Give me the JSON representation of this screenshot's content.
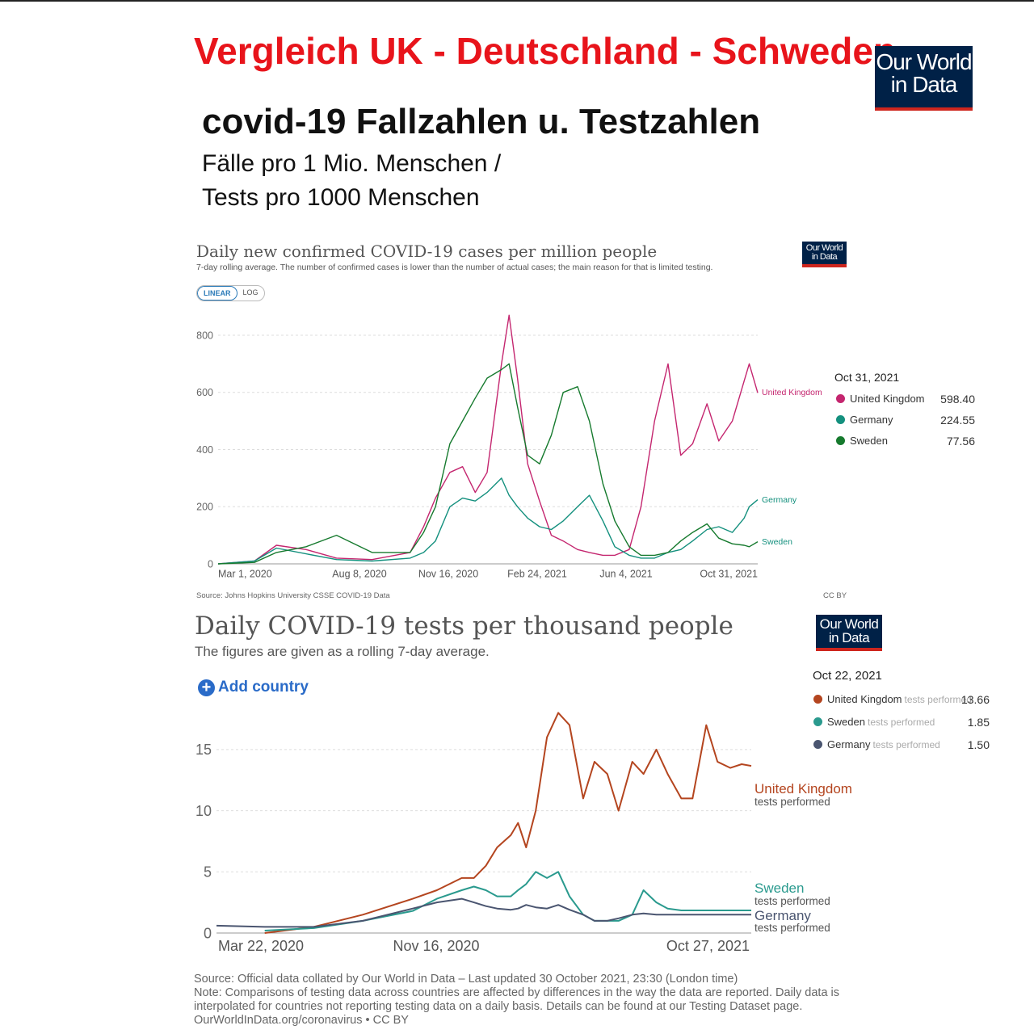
{
  "header": {
    "title": "Vergleich UK - Deutschland - Schweden",
    "subtitle": "covid-19 Fallzahlen u. Testzahlen",
    "line1": "Fälle pro 1 Mio. Menschen /",
    "line2": "Tests pro 1000 Menschen",
    "logo_line1": "Our World",
    "logo_line2": "in Data"
  },
  "chart1": {
    "title": "Daily new confirmed COVID-19 cases per million people",
    "subtitle": "7-day rolling average. The number of confirmed cases is lower than the number of actual cases; the main reason for that is limited testing.",
    "toggle_linear": "LINEAR",
    "toggle_log": "LOG",
    "source": "Source: Johns Hopkins University CSSE COVID-19 Data",
    "license": "CC BY",
    "legend_date": "Oct 31, 2021",
    "legend": [
      {
        "name": "United Kingdom",
        "value": "598.40"
      },
      {
        "name": "Germany",
        "value": "224.55"
      },
      {
        "name": "Sweden",
        "value": "77.56"
      }
    ],
    "end_labels": {
      "uk": "United Kingdom",
      "de": "Germany",
      "se": "Sweden"
    }
  },
  "chart2": {
    "title": "Daily COVID-19 tests per thousand people",
    "subtitle": "The figures are given as a rolling 7-day average.",
    "add_country": "Add country",
    "legend_date": "Oct 22, 2021",
    "legend_suffix": "tests performed",
    "legend": [
      {
        "name": "United Kingdom",
        "value": "13.66"
      },
      {
        "name": "Sweden",
        "value": "1.85"
      },
      {
        "name": "Germany",
        "value": "1.50"
      }
    ],
    "end_labels": {
      "uk": "United Kingdom",
      "se": "Sweden",
      "de": "Germany",
      "sub": "tests performed"
    },
    "footer": {
      "source": "Source: Official data collated by Our World in Data – Last updated 30 October 2021, 23:30 (London time)",
      "note": "Note: Comparisons of testing data across countries are affected by differences in the way the data are reported. Daily data is interpolated for countries not reporting testing data on a daily basis. Details can be found at our Testing Dataset page.",
      "url": "OurWorldInData.org/coronavirus • CC BY"
    }
  },
  "colors": {
    "uk1": "#c4266f",
    "de1": "#14907e",
    "se1": "#167a2e",
    "uk2": "#b4451f",
    "se2": "#2a9a8e",
    "de2": "#4a5570"
  },
  "chart_data": [
    {
      "type": "line",
      "title": "Daily new confirmed COVID-19 cases per million people",
      "ylim": [
        0,
        800
      ],
      "yticks": [
        0,
        200,
        400,
        600,
        800
      ],
      "xticks": [
        "Mar 1, 2020",
        "Aug 8, 2020",
        "Nov 16, 2020",
        "Feb 24, 2021",
        "Jun 4, 2021",
        "Oct 31, 2021"
      ],
      "x": [
        "2020-02-01",
        "2020-03-15",
        "2020-04-10",
        "2020-05-15",
        "2020-06-20",
        "2020-08-01",
        "2020-09-15",
        "2020-10-01",
        "2020-10-15",
        "2020-11-01",
        "2020-11-16",
        "2020-12-01",
        "2020-12-15",
        "2021-01-01",
        "2021-01-10",
        "2021-01-20",
        "2021-02-01",
        "2021-02-15",
        "2021-03-01",
        "2021-03-15",
        "2021-04-01",
        "2021-04-15",
        "2021-05-01",
        "2021-05-15",
        "2021-06-01",
        "2021-06-15",
        "2021-07-01",
        "2021-07-17",
        "2021-08-01",
        "2021-08-15",
        "2021-09-01",
        "2021-09-15",
        "2021-10-01",
        "2021-10-15",
        "2021-10-21",
        "2021-10-31"
      ],
      "series": [
        {
          "name": "United Kingdom",
          "values": [
            0,
            10,
            65,
            50,
            20,
            15,
            40,
            130,
            230,
            320,
            340,
            250,
            320,
            700,
            870,
            650,
            350,
            220,
            100,
            80,
            50,
            40,
            30,
            30,
            50,
            200,
            500,
            700,
            380,
            420,
            560,
            430,
            500,
            640,
            700,
            598.4
          ]
        },
        {
          "name": "Germany",
          "values": [
            0,
            10,
            55,
            35,
            15,
            10,
            20,
            40,
            80,
            200,
            230,
            220,
            250,
            300,
            240,
            200,
            160,
            130,
            120,
            150,
            200,
            240,
            150,
            60,
            30,
            20,
            20,
            40,
            50,
            80,
            120,
            130,
            110,
            160,
            200,
            224.55
          ]
        },
        {
          "name": "Sweden",
          "values": [
            0,
            5,
            40,
            60,
            100,
            40,
            40,
            110,
            200,
            420,
            500,
            580,
            650,
            680,
            700,
            550,
            380,
            350,
            450,
            600,
            620,
            500,
            280,
            150,
            60,
            30,
            30,
            40,
            80,
            110,
            140,
            90,
            70,
            65,
            60,
            77.56
          ]
        }
      ]
    },
    {
      "type": "line",
      "title": "Daily COVID-19 tests per thousand people",
      "ylim": [
        0,
        17.5
      ],
      "yticks": [
        0,
        5,
        10,
        15
      ],
      "xticks": [
        "Mar 22, 2020",
        "Nov 16, 2020",
        "Oct 27, 2021"
      ],
      "x": [
        "2020-01-01",
        "2020-03-01",
        "2020-05-01",
        "2020-07-01",
        "2020-09-01",
        "2020-10-01",
        "2020-11-01",
        "2020-11-16",
        "2020-12-01",
        "2020-12-15",
        "2021-01-01",
        "2021-01-10",
        "2021-01-20",
        "2021-02-01",
        "2021-02-15",
        "2021-03-01",
        "2021-03-15",
        "2021-04-01",
        "2021-04-15",
        "2021-05-01",
        "2021-05-15",
        "2021-06-01",
        "2021-06-15",
        "2021-07-01",
        "2021-07-15",
        "2021-08-01",
        "2021-08-15",
        "2021-09-01",
        "2021-09-15",
        "2021-10-01",
        "2021-10-15",
        "2021-10-27"
      ],
      "series": [
        {
          "name": "United Kingdom tests performed",
          "values": [
            null,
            0,
            0.5,
            1.5,
            2.8,
            3.5,
            4.5,
            4.5,
            5.5,
            7,
            8,
            9,
            7,
            10,
            16,
            18,
            17,
            11,
            14,
            13,
            10,
            14,
            13,
            15,
            13,
            11,
            11,
            17,
            14,
            13.5,
            13.8,
            13.66
          ]
        },
        {
          "name": "Sweden tests performed",
          "values": [
            null,
            0.2,
            0.4,
            1,
            1.8,
            2.8,
            3.5,
            3.8,
            3.5,
            3,
            3,
            3.5,
            4,
            5,
            4.5,
            5,
            3,
            1.5,
            1,
            1,
            1,
            1.5,
            3.5,
            2.5,
            2,
            1.85,
            1.85,
            1.85,
            1.85,
            1.85,
            1.85,
            1.85
          ]
        },
        {
          "name": "Germany tests performed",
          "values": [
            0.6,
            0.5,
            0.5,
            1,
            2,
            2.5,
            2.8,
            2.5,
            2.2,
            2,
            1.9,
            2,
            2.3,
            2.1,
            2,
            2.3,
            1.9,
            1.5,
            1,
            1,
            1.2,
            1.5,
            1.6,
            1.5,
            1.5,
            1.5,
            1.5,
            1.5,
            1.5,
            1.5,
            1.5,
            1.5
          ]
        }
      ]
    }
  ]
}
